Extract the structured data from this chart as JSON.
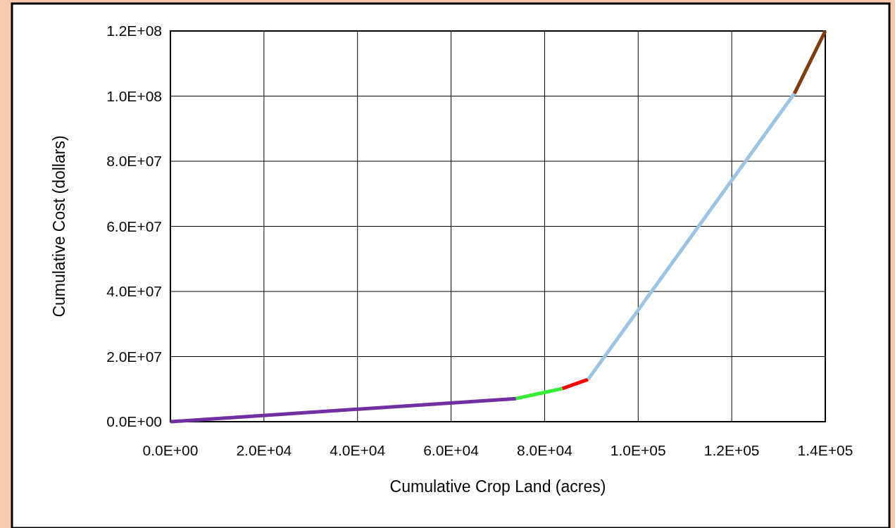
{
  "chart_data": {
    "type": "line",
    "xlabel": "Cumulative Crop Land (acres)",
    "ylabel": "Cumulative Cost (dollars)",
    "xlim": [
      0,
      140000
    ],
    "ylim": [
      0,
      120000000
    ],
    "xticks": [
      {
        "value": 0,
        "label": "0.0E+00"
      },
      {
        "value": 20000,
        "label": "2.0E+04"
      },
      {
        "value": 40000,
        "label": "4.0E+04"
      },
      {
        "value": 60000,
        "label": "6.0E+04"
      },
      {
        "value": 80000,
        "label": "8.0E+04"
      },
      {
        "value": 100000,
        "label": "1.0E+05"
      },
      {
        "value": 120000,
        "label": "1.2E+05"
      },
      {
        "value": 140000,
        "label": "1.4E+05"
      }
    ],
    "yticks": [
      {
        "value": 0,
        "label": "0.0E+00"
      },
      {
        "value": 20000000,
        "label": "2.0E+07"
      },
      {
        "value": 40000000,
        "label": "4.0E+07"
      },
      {
        "value": 60000000,
        "label": "6.0E+07"
      },
      {
        "value": 80000000,
        "label": "8.0E+07"
      },
      {
        "value": 100000000,
        "label": "1.0E+08"
      },
      {
        "value": 120000000,
        "label": "1.2E+08"
      }
    ],
    "grid": true,
    "marker": "none",
    "line_style": "solid",
    "series": [
      {
        "color": "#7030a0",
        "x": [
          0,
          73900
        ],
        "values": [
          0,
          7100000
        ]
      },
      {
        "color": "#33ee33",
        "x": [
          73900,
          83800
        ],
        "values": [
          7100000,
          10200000
        ]
      },
      {
        "color": "#ff0000",
        "x": [
          83800,
          89300
        ],
        "values": [
          10200000,
          13000000
        ]
      },
      {
        "color": "#9dc3e6",
        "x": [
          89300,
          133400
        ],
        "values": [
          13000000,
          100800000
        ]
      },
      {
        "color": "#843c0c",
        "x": [
          133400,
          140000
        ],
        "values": [
          100800000,
          120000000
        ]
      }
    ]
  }
}
